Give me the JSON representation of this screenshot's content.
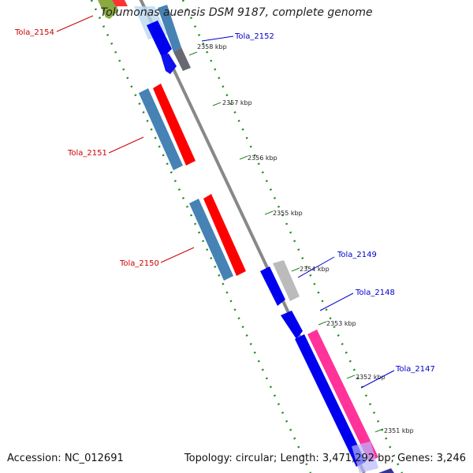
{
  "title": "Tolumonas auensis DSM 9187, complete genome",
  "footer": {
    "accession": "Accession: NC_012691",
    "summary": "Topology: circular; Length: 3,471,292 bp; Genes: 3,246"
  },
  "ticks": [
    "2358 kbp",
    "2357 kbp",
    "2356 kbp",
    "2355 kbp",
    "2354 kbp",
    "2353 kbp",
    "2352 kbp",
    "2351 kbp"
  ],
  "genes": {
    "tola_2154": "Tola_2154",
    "tola_2152": "Tola_2152",
    "tola_2151": "Tola_2151",
    "tola_2150": "Tola_2150",
    "tola_2149": "Tola_2149",
    "tola_2148": "Tola_2148",
    "tola_2147": "Tola_2147"
  },
  "colors": {
    "reverse_label": "#cc0000",
    "forward_label": "#0000cc",
    "backbone": "#888888",
    "gc_dots": "#1a8a1a",
    "red_feature": "#ff0000",
    "blue_feature": "#0000ee",
    "steel_feature": "#4682b4",
    "pink_feature": "#ff3399",
    "gray_feature": "#bbbbbb"
  }
}
